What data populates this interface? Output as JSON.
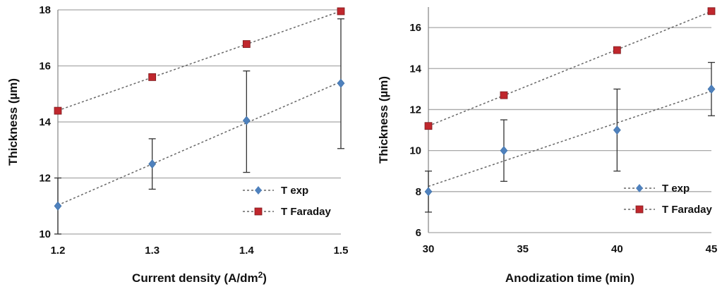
{
  "chart_data": [
    {
      "type": "line",
      "xlabel": "Current density (A/dm",
      "xlabel_sup": "2",
      "xlabel_end": ")",
      "ylabel": "Thickness (µm)",
      "x": [
        1.2,
        1.3,
        1.4,
        1.5
      ],
      "x_ticks": [
        "1.2",
        "1.3",
        "1.4",
        "1.5"
      ],
      "y_ticks": [
        "10",
        "12",
        "14",
        "16",
        "18"
      ],
      "xlim": [
        1.2,
        1.5
      ],
      "ylim": [
        10,
        18
      ],
      "grid": "horizontal",
      "legend_position": "bottom-right",
      "series": [
        {
          "name": "T exp",
          "values": [
            11.0,
            12.5,
            14.05,
            15.38
          ],
          "error_low": [
            10.0,
            11.6,
            12.2,
            13.05
          ],
          "error_high": [
            12.0,
            13.4,
            15.82,
            17.68
          ],
          "marker": "diamond",
          "color": "#4f81bd",
          "line_style": "dotted",
          "trendline": true
        },
        {
          "name": "T Faraday",
          "values": [
            14.4,
            15.6,
            16.78,
            17.95
          ],
          "marker": "square",
          "color": "#c0272d",
          "line_style": "dotted",
          "trendline": true
        }
      ]
    },
    {
      "type": "line",
      "xlabel": "Anodization time (min)",
      "ylabel": "Thickness (µm)",
      "x": [
        30,
        34,
        40,
        45
      ],
      "x_ticks": [
        "30",
        "35",
        "40",
        "45"
      ],
      "x_tick_values": [
        30,
        35,
        40,
        45
      ],
      "y_ticks": [
        "6",
        "8",
        "10",
        "12",
        "14",
        "16"
      ],
      "xlim": [
        30,
        45
      ],
      "ylim": [
        6,
        17
      ],
      "grid": "horizontal",
      "legend_position": "bottom-right",
      "series": [
        {
          "name": "T exp",
          "values": [
            8.0,
            10.0,
            11.0,
            13.0
          ],
          "error_low": [
            7.0,
            8.5,
            9.0,
            11.7
          ],
          "error_high": [
            9.0,
            11.5,
            13.0,
            14.3
          ],
          "marker": "diamond",
          "color": "#4f81bd",
          "line_style": "dotted",
          "trendline": true
        },
        {
          "name": "T Faraday",
          "values": [
            11.2,
            12.7,
            14.9,
            16.8
          ],
          "marker": "square",
          "color": "#c0272d",
          "line_style": "dotted",
          "trendline": true
        }
      ]
    }
  ]
}
